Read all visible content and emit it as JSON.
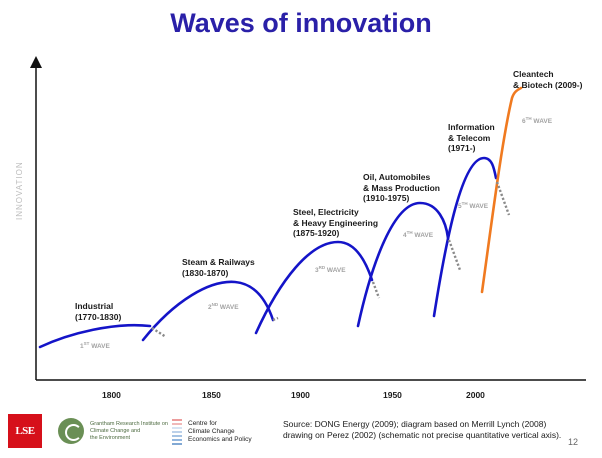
{
  "title": "Waves of innovation",
  "y_axis_label": "INNOVATION",
  "x_ticks": [
    "1800",
    "1850",
    "1900",
    "1950",
    "2000"
  ],
  "eras": [
    {
      "label": "Industrial\n(1770-1830)"
    },
    {
      "label": "Steam & Railways\n(1830-1870)"
    },
    {
      "label": "Steel, Electricity\n& Heavy Engineering\n(1875-1920)"
    },
    {
      "label": "Oil, Automobiles\n& Mass Production\n(1910-1975)"
    },
    {
      "label": "Information\n& Telecom\n(1971-)"
    },
    {
      "label": "Cleantech\n& Biotech (2009-)"
    }
  ],
  "waves": [
    {
      "num": "1",
      "sup": "ST",
      "suffix": " WAVE"
    },
    {
      "num": "2",
      "sup": "ND",
      "suffix": " WAVE"
    },
    {
      "num": "3",
      "sup": "RD",
      "suffix": " WAVE"
    },
    {
      "num": "4",
      "sup": "TH",
      "suffix": " WAVE"
    },
    {
      "num": "5",
      "sup": "TH",
      "suffix": " WAVE"
    },
    {
      "num": "6",
      "sup": "TH",
      "suffix": " WAVE"
    }
  ],
  "colors": {
    "title": "#2a20a8",
    "wave_line": "#1414c8",
    "sixth_wave": "#f07a20",
    "decline_dots": "#8a8a8a"
  },
  "source": "Source: DONG Energy (2009); diagram based on Merrill Lynch (2008) drawing on Perez (2002) (schematic not precise quantitative vertical axis).",
  "page_number": "12",
  "logos": {
    "lse": "LSE",
    "grantham": "Grantham Research Institute on\nClimate Change and\nthe Environment",
    "cccep": "Centre for\nClimate Change\nEconomics and Policy"
  }
}
